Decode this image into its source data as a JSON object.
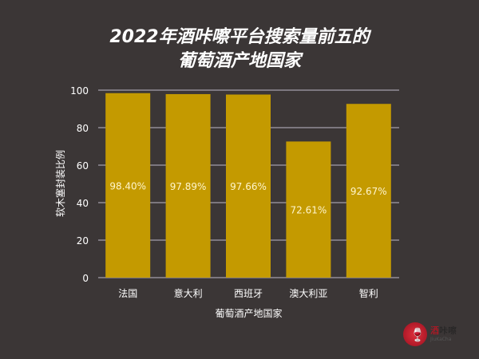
{
  "title_line1": "2022年酒咔嚓平台搜索量前五的",
  "title_line2": "葡萄酒产地国家",
  "logo": {
    "text_red": "酒",
    "text": "咔嚓",
    "sub": "JiuKaCha"
  },
  "chart_data": {
    "type": "bar",
    "title": "2022年酒咔嚓平台搜索量前五的葡萄酒产地国家",
    "categories": [
      "法国",
      "意大利",
      "西班牙",
      "澳大利亚",
      "智利"
    ],
    "values": [
      98.4,
      97.89,
      97.66,
      72.61,
      92.67
    ],
    "data_labels": [
      "98.40%",
      "97.89%",
      "97.66%",
      "72.61%",
      "92.67%"
    ],
    "xlabel": "葡萄酒产地国家",
    "ylabel": "软木塞封装比例",
    "ylim": [
      0,
      100
    ],
    "yticks": [
      0,
      20,
      40,
      60,
      80,
      100
    ],
    "grid": true,
    "bar_color": "#c49a00",
    "background": "#3b3636"
  }
}
